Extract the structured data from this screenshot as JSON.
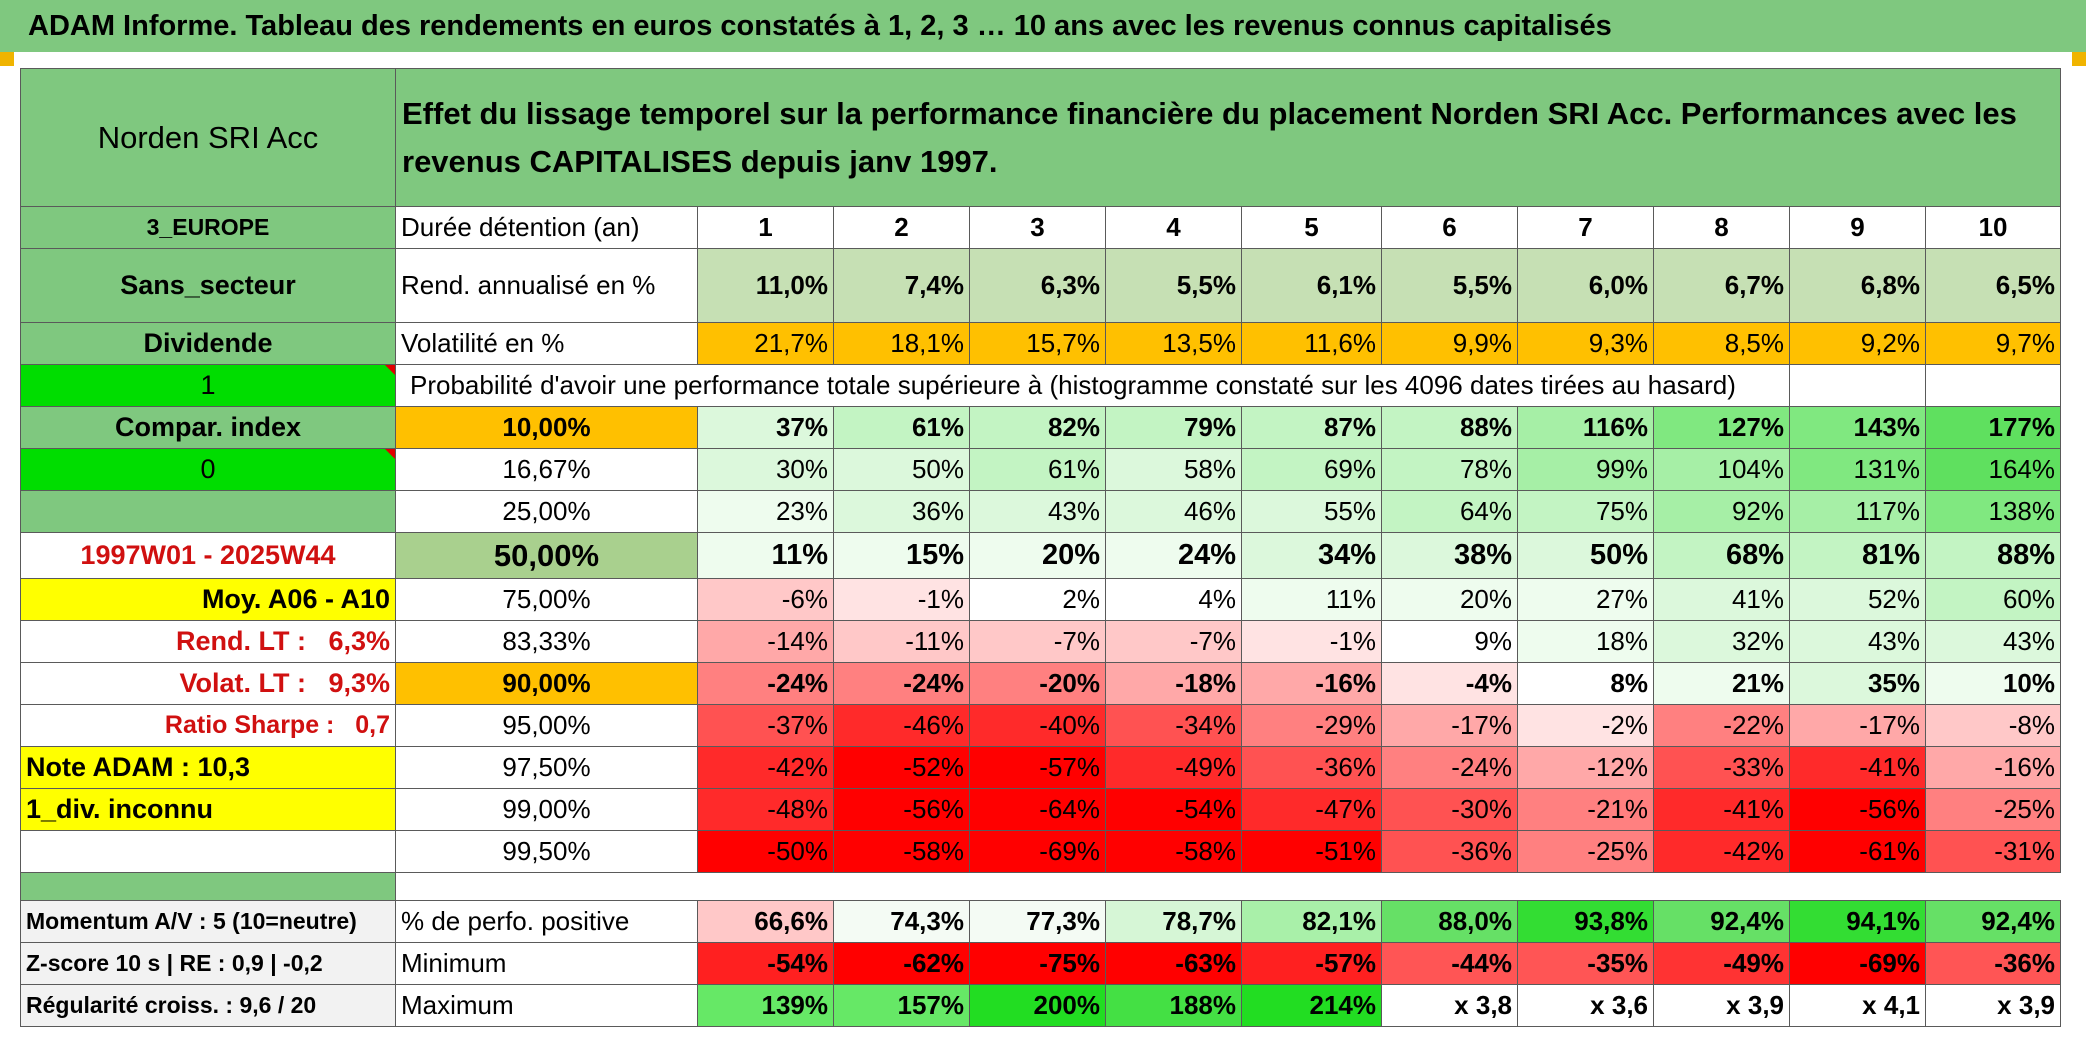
{
  "title": "ADAM Informe. Tableau des rendements en euros constatés à 1, 2, 3 … 10 ans avec les revenus connus capitalisés",
  "fund_name": "Norden SRI Acc",
  "header_text": "Effet du lissage temporel sur la performance financière du placement Norden SRI Acc. Performances avec les revenus CAPITALISES depuis janv 1997.",
  "left_labels": {
    "region": "3_EUROPE",
    "sector": "Sans_secteur",
    "dividend": "Dividende",
    "input1": "1",
    "compar": "Compar. index",
    "input0": "0",
    "period": "1997W01 - 2025W44",
    "moy": "Moy. A06 - A10",
    "rend_lt_label": "Rend. LT :",
    "rend_lt_value": "6,3%",
    "volat_lt_label": "Volat. LT :",
    "volat_lt_value": "9,3%",
    "sharpe_label": "Ratio Sharpe :",
    "sharpe_value": "0,7",
    "note": "Note ADAM : 10,3",
    "div": "1_div. inconnu",
    "momentum": "Momentum A/V : 5 (10=neutre)",
    "zscore": "Z-score 10 s | RE : 0,9 | -0,2",
    "regularite": "Régularité croiss. : 9,6 / 20"
  },
  "row_labels": {
    "duration": "Durée détention (an)",
    "return": "Rend. annualisé en %",
    "volatility": "Volatilité en %",
    "probability": "Probabilité d'avoir une performance totale supérieure à (histogramme constaté sur les 4096 dates tirées au hasard)",
    "positive": "% de perfo. positive",
    "minimum": "Minimum",
    "maximum": "Maximum"
  },
  "durations": [
    "1",
    "2",
    "3",
    "4",
    "5",
    "6",
    "7",
    "8",
    "9",
    "10"
  ],
  "returns": [
    "11,0%",
    "7,4%",
    "6,3%",
    "5,5%",
    "6,1%",
    "5,5%",
    "6,0%",
    "6,7%",
    "6,8%",
    "6,5%"
  ],
  "volatility": [
    "21,7%",
    "18,1%",
    "15,7%",
    "13,5%",
    "11,6%",
    "9,9%",
    "9,3%",
    "8,5%",
    "9,2%",
    "9,7%"
  ],
  "percentile_rows": [
    {
      "pct": "10,00%",
      "values": [
        "37%",
        "61%",
        "82%",
        "79%",
        "87%",
        "88%",
        "116%",
        "127%",
        "143%",
        "177%"
      ]
    },
    {
      "pct": "16,67%",
      "values": [
        "30%",
        "50%",
        "61%",
        "58%",
        "69%",
        "78%",
        "99%",
        "104%",
        "131%",
        "164%"
      ]
    },
    {
      "pct": "25,00%",
      "values": [
        "23%",
        "36%",
        "43%",
        "46%",
        "55%",
        "64%",
        "75%",
        "92%",
        "117%",
        "138%"
      ]
    },
    {
      "pct": "50,00%",
      "values": [
        "11%",
        "15%",
        "20%",
        "24%",
        "34%",
        "38%",
        "50%",
        "68%",
        "81%",
        "88%"
      ]
    },
    {
      "pct": "75,00%",
      "values": [
        "-6%",
        "-1%",
        "2%",
        "4%",
        "11%",
        "20%",
        "27%",
        "41%",
        "52%",
        "60%"
      ]
    },
    {
      "pct": "83,33%",
      "values": [
        "-14%",
        "-11%",
        "-7%",
        "-7%",
        "-1%",
        "9%",
        "18%",
        "32%",
        "43%",
        "43%"
      ]
    },
    {
      "pct": "90,00%",
      "values": [
        "-24%",
        "-24%",
        "-20%",
        "-18%",
        "-16%",
        "-4%",
        "8%",
        "21%",
        "35%",
        "10%"
      ]
    },
    {
      "pct": "95,00%",
      "values": [
        "-37%",
        "-46%",
        "-40%",
        "-34%",
        "-29%",
        "-17%",
        "-2%",
        "-22%",
        "-17%",
        "-8%"
      ]
    },
    {
      "pct": "97,50%",
      "values": [
        "-42%",
        "-52%",
        "-57%",
        "-49%",
        "-36%",
        "-24%",
        "-12%",
        "-33%",
        "-41%",
        "-16%"
      ]
    },
    {
      "pct": "99,00%",
      "values": [
        "-48%",
        "-56%",
        "-64%",
        "-54%",
        "-47%",
        "-30%",
        "-21%",
        "-41%",
        "-56%",
        "-25%"
      ]
    },
    {
      "pct": "99,50%",
      "values": [
        "-50%",
        "-58%",
        "-69%",
        "-58%",
        "-51%",
        "-36%",
        "-25%",
        "-42%",
        "-61%",
        "-31%"
      ]
    }
  ],
  "positive_perf": [
    "66,6%",
    "74,3%",
    "77,3%",
    "78,7%",
    "82,1%",
    "88,0%",
    "93,8%",
    "92,4%",
    "94,1%",
    "92,4%"
  ],
  "minimum": [
    "-54%",
    "-62%",
    "-75%",
    "-63%",
    "-57%",
    "-44%",
    "-35%",
    "-49%",
    "-69%",
    "-36%"
  ],
  "maximum": [
    "139%",
    "157%",
    "200%",
    "188%",
    "214%",
    "x 3,8",
    "x 3,6",
    "x 3,9",
    "x 4,1",
    "x 3,9"
  ],
  "colors": {
    "header_green": "#7fc87f",
    "return_green": "#c6e0b4",
    "volatility_orange": "#ffc000",
    "highlight_yellow": "#ffff00",
    "bright_green": "#00dd00",
    "label_red": "#d01010"
  }
}
